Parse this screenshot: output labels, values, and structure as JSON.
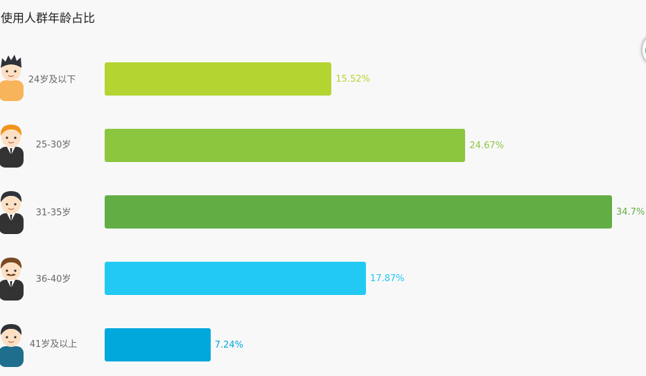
{
  "title": "使用人群年龄占比",
  "chart_data": {
    "type": "bar",
    "orientation": "horizontal",
    "title": "使用人群年龄占比",
    "categories": [
      "24岁及以下",
      "25-30岁",
      "31-35岁",
      "36-40岁",
      "41岁及以上"
    ],
    "values": [
      15.52,
      24.67,
      34.7,
      17.87,
      7.24
    ],
    "value_labels": [
      "15.52%",
      "24.67%",
      "34.7%",
      "17.87%",
      "7.24%"
    ],
    "colors": [
      "#b4d431",
      "#8cc63f",
      "#63ae44",
      "#22c9f3",
      "#00a8dc"
    ],
    "unit": "%",
    "grid": false,
    "legend": "none"
  }
}
